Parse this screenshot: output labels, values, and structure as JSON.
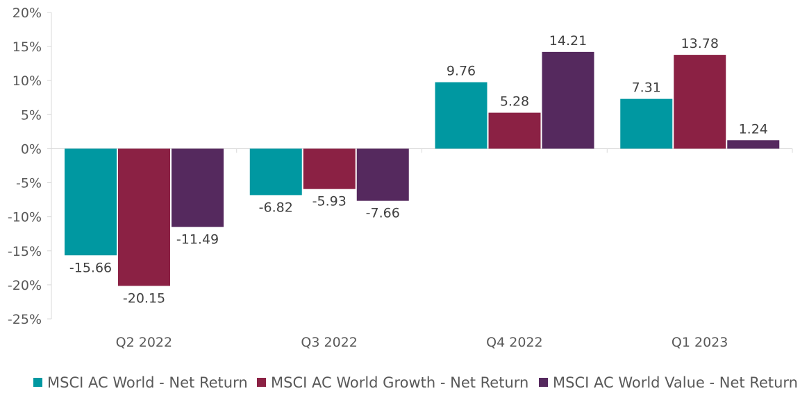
{
  "chart_data": {
    "type": "bar",
    "categories": [
      "Q2 2022",
      "Q3 2022",
      "Q4 2022",
      "Q1 2023"
    ],
    "series": [
      {
        "name": "MSCI AC World - Net Return",
        "color": "#0098A1",
        "values": [
          -15.66,
          -6.82,
          9.76,
          7.31
        ]
      },
      {
        "name": "MSCI AC World Growth - Net Return",
        "color": "#8B2144",
        "values": [
          -20.15,
          -5.93,
          5.28,
          13.78
        ]
      },
      {
        "name": "MSCI AC World Value - Net Return",
        "color": "#55295E",
        "values": [
          -11.49,
          -7.66,
          14.21,
          1.24
        ]
      }
    ],
    "ylim": [
      -25,
      20
    ],
    "yticks": [
      20,
      15,
      10,
      5,
      0,
      -5,
      -10,
      -15,
      -20,
      -25
    ],
    "ytick_labels": [
      "20%",
      "15%",
      "10%",
      "5%",
      "0%",
      "-5%",
      "-10%",
      "-15%",
      "-20%",
      "-25%"
    ],
    "legend_position": "bottom",
    "grid": false
  }
}
